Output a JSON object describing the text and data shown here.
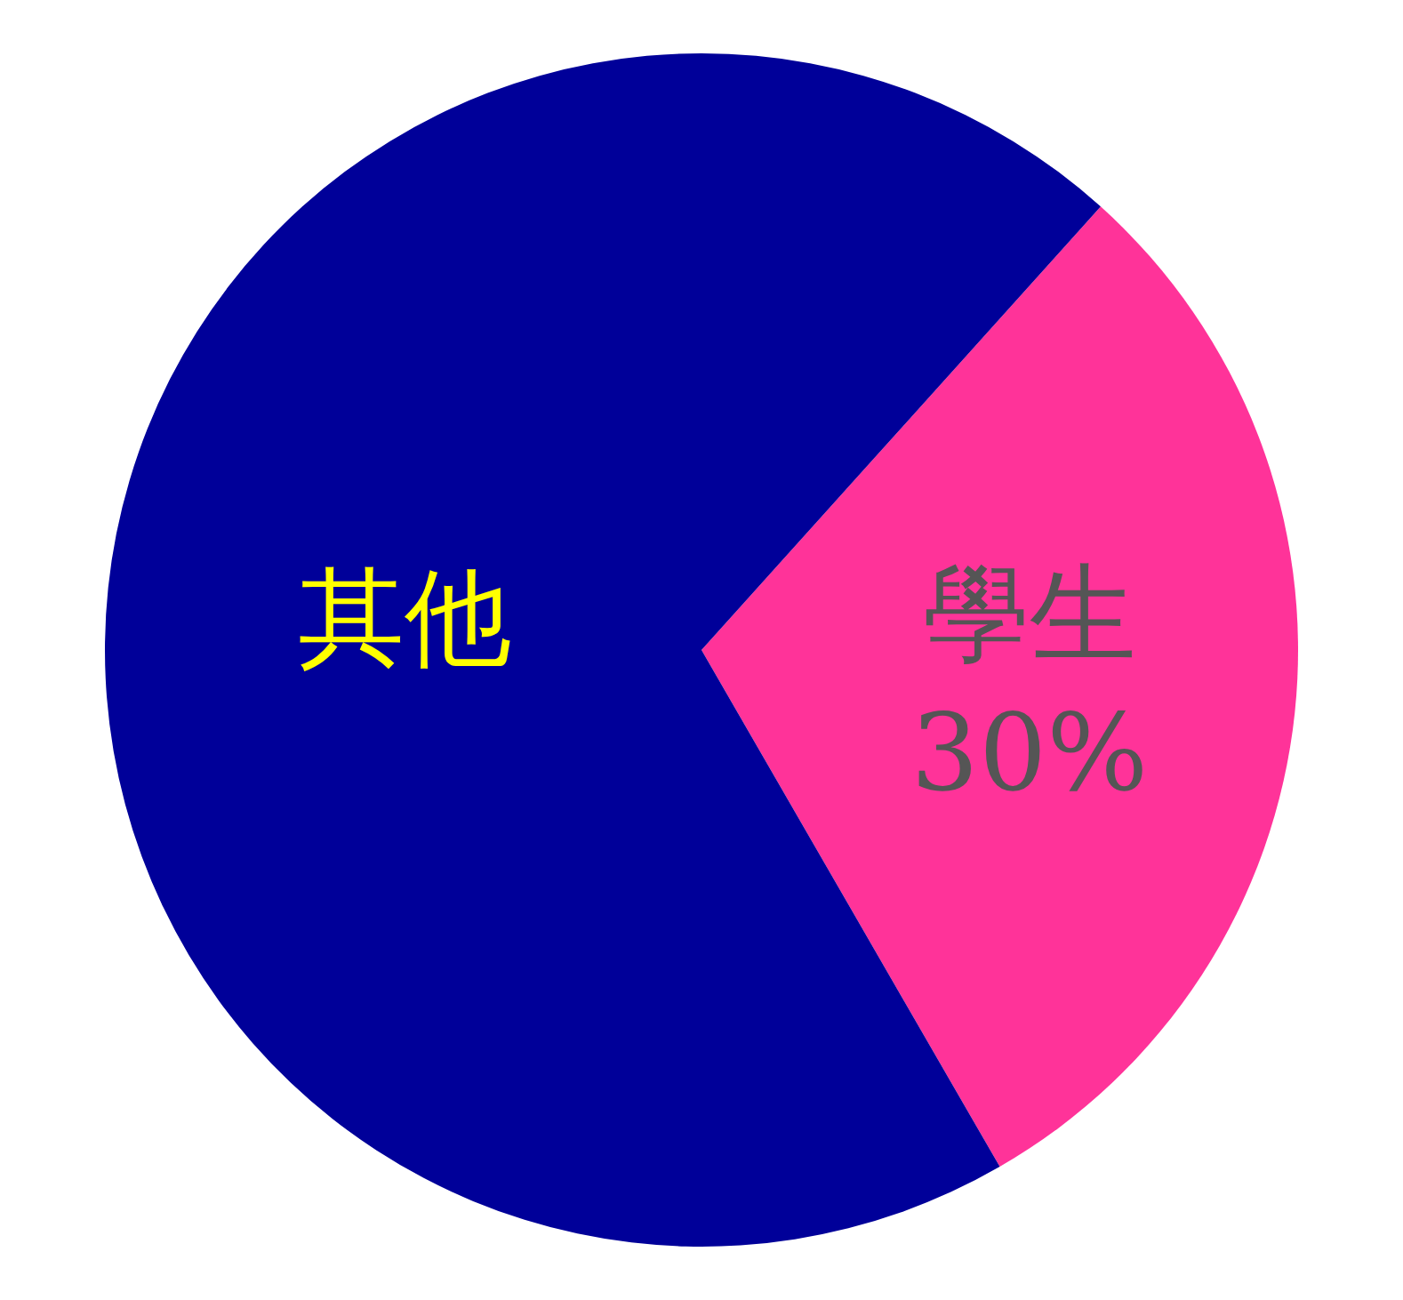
{
  "chart_data": {
    "type": "pie",
    "categories": [
      "學生",
      "其他"
    ],
    "values": [
      30,
      70
    ],
    "colors": [
      "#ff3399",
      "#000099"
    ],
    "value_labels": [
      "30%",
      null
    ],
    "legend": false
  }
}
